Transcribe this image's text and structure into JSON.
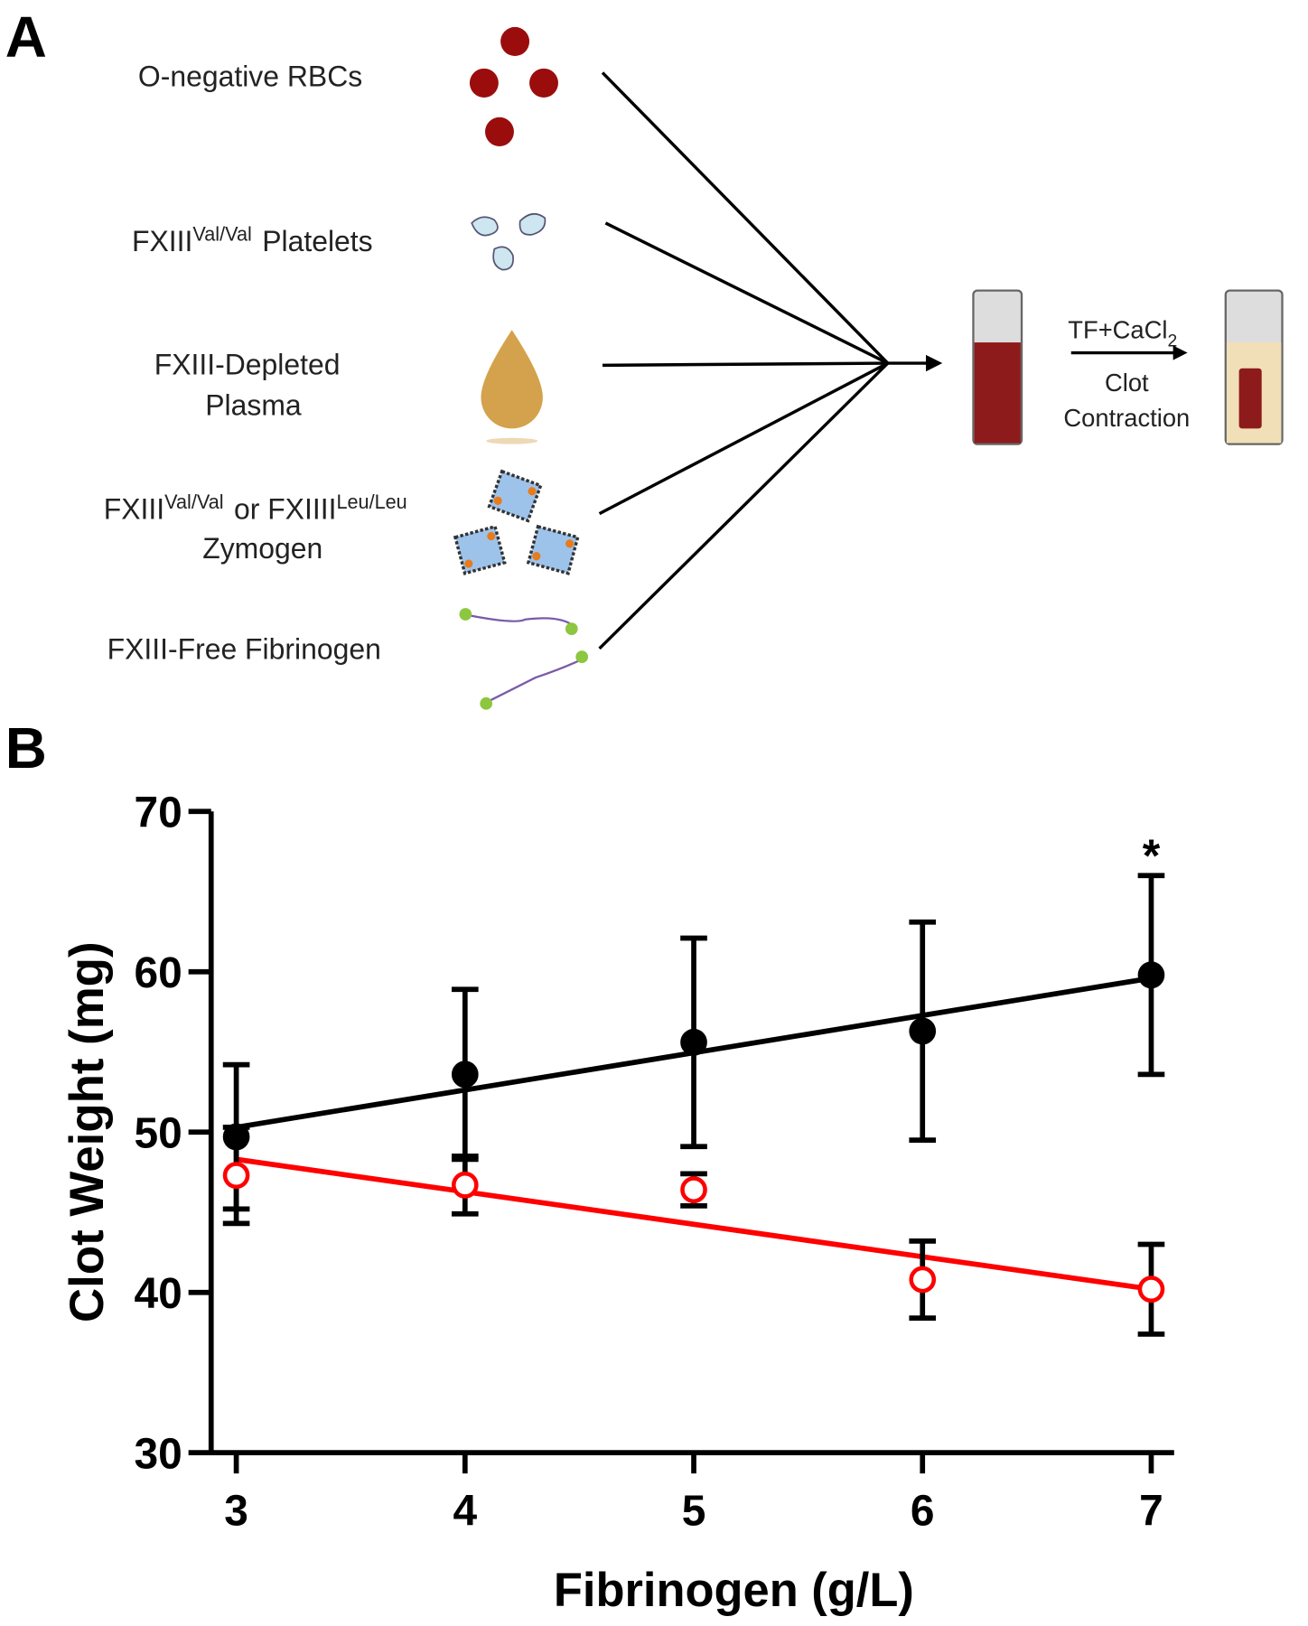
{
  "panel_labels": [
    "A",
    "B"
  ],
  "diagram": {
    "rbc": "O-negative RBCs",
    "platelets": {
      "base": "FXIII",
      "sup": "Val/Val",
      "rest": "Platelets"
    },
    "plasma": [
      "FXIII-Depleted",
      "Plasma"
    ],
    "zymogen": {
      "base": "FXIII",
      "sup": "Val/Val",
      "mid": "or FXIIII",
      "sup2": "Leu/Leu",
      "line2": "Zymogen"
    },
    "fibrinogen": "FXIII-Free Fibrinogen",
    "reagent": {
      "base": "TF+CaCl",
      "sub": "2"
    },
    "result": [
      "Clot",
      "Contraction"
    ]
  },
  "chart_data": {
    "type": "scatter",
    "x_label": "Fibrinogen (g/L)",
    "y_label": "Clot Weight (mg)",
    "x": [
      3,
      4,
      5,
      6,
      7
    ],
    "series": [
      {
        "color": "#000000",
        "filled": true,
        "values": [
          49.7,
          53.6,
          55.6,
          56.3,
          59.8
        ],
        "errors": [
          4.5,
          5.3,
          6.5,
          6.8,
          6.2
        ],
        "fit": {
          "x": [
            3,
            7
          ],
          "y": [
            50.3,
            59.6
          ]
        }
      },
      {
        "color": "#ff0000",
        "filled": false,
        "values": [
          47.3,
          46.7,
          46.4,
          40.8,
          40.2
        ],
        "errors": [
          3.0,
          1.8,
          1.0,
          2.4,
          2.8
        ],
        "fit": {
          "x": [
            3,
            7
          ],
          "y": [
            48.3,
            40.2
          ]
        }
      }
    ],
    "xlim": [
      2.89,
      7.1
    ],
    "xticks": [
      3,
      4,
      5,
      6,
      7
    ],
    "ylim": [
      30,
      70
    ],
    "yticks": [
      30,
      40,
      50,
      60,
      70
    ],
    "annotations": [
      {
        "text": "*",
        "x": 7
      }
    ]
  }
}
